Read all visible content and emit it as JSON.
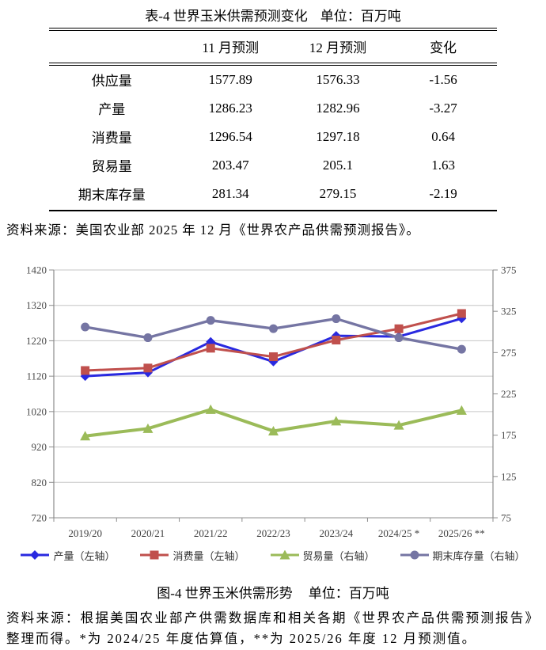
{
  "table_caption": {
    "title": "表-4 世界玉米供需预测变化",
    "unit": "单位：百万吨"
  },
  "table": {
    "headers": [
      "",
      "11 月预测",
      "12 月预测",
      "变化"
    ],
    "rows": [
      {
        "label": "供应量",
        "nov": "1577.89",
        "dec": "1576.33",
        "change": "-1.56"
      },
      {
        "label": "产量",
        "nov": "1286.23",
        "dec": "1282.96",
        "change": "-3.27"
      },
      {
        "label": "消费量",
        "nov": "1296.54",
        "dec": "1297.18",
        "change": "0.64"
      },
      {
        "label": "贸易量",
        "nov": "203.47",
        "dec": "205.1",
        "change": "1.63"
      },
      {
        "label": "期末库存量",
        "nov": "281.34",
        "dec": "279.15",
        "change": "-2.19"
      }
    ]
  },
  "table_source": "资料来源：美国农业部 2025 年 12 月《世界农产品供需预测报告》。",
  "chart_data": {
    "type": "line",
    "title": "图-4 世界玉米供需形势",
    "unit": "百万吨",
    "categories": [
      "2019/20",
      "2020/21",
      "2021/22",
      "2022/23",
      "2023/24",
      "2024/25 *",
      "2025/26 **"
    ],
    "series": [
      {
        "name": "产量（左轴）",
        "axis": "left",
        "marker": "diamond",
        "color": "#2929e0",
        "values": [
          1120,
          1130,
          1217,
          1161,
          1234,
          1232,
          1283
        ]
      },
      {
        "name": "消费量（左轴）",
        "axis": "left",
        "marker": "square",
        "color": "#c0504d",
        "values": [
          1136,
          1143,
          1199,
          1175,
          1222,
          1254,
          1297
        ]
      },
      {
        "name": "贸易量（右轴）",
        "axis": "right",
        "marker": "triangle",
        "color": "#9bbb59",
        "values": [
          174,
          183,
          206,
          180,
          192,
          187,
          205
        ]
      },
      {
        "name": "期末库存量（右轴）",
        "axis": "right",
        "marker": "circle",
        "color": "#7575a3",
        "values": [
          306,
          293,
          314,
          304,
          316,
          293,
          279
        ]
      }
    ],
    "left_axis": {
      "min": 720,
      "max": 1420,
      "step": 100
    },
    "right_axis": {
      "min": 75,
      "max": 375,
      "step": 50
    },
    "grid": true,
    "legend_position": "bottom"
  },
  "figure_caption": {
    "title": "图-4 世界玉米供需形势",
    "unit": "单位：百万吨"
  },
  "figure_source": "资料来源：根据美国农业部产供需数据库和相关各期《世界农产品供需预测报告》整理而得。*为 2024/25 年度估算值，**为 2025/26 年度 12 月预测值。"
}
